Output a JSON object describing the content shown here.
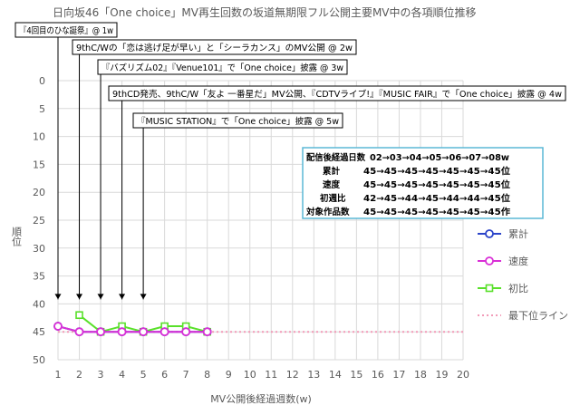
{
  "chart_data": {
    "type": "line",
    "title": "日向坂46「One choice」MV再生回数の坂道無期限フル公開主要MV中の各項順位推移",
    "xlabel": "MV公開後経過週数(w)",
    "ylabel": "順位",
    "x_ticks": [
      1,
      2,
      3,
      4,
      5,
      6,
      7,
      8,
      9,
      10,
      11,
      12,
      13,
      14,
      15,
      16,
      17,
      18,
      19,
      20
    ],
    "y_ticks": [
      0,
      5,
      10,
      15,
      20,
      25,
      30,
      35,
      40,
      45,
      50
    ],
    "xlim": [
      1,
      20
    ],
    "ylim": [
      0,
      50
    ],
    "y_inverted": true,
    "grid": true,
    "legend_position": "right",
    "series": [
      {
        "name": "累計",
        "color": "#2b44c9",
        "marker": "circle",
        "x": [
          1,
          2,
          3,
          4,
          5,
          6,
          7,
          8
        ],
        "values": [
          44,
          45,
          45,
          45,
          45,
          45,
          45,
          45
        ]
      },
      {
        "name": "速度",
        "color": "#d92fd6",
        "marker": "circle",
        "x": [
          1,
          2,
          3,
          4,
          5,
          6,
          7,
          8
        ],
        "values": [
          44,
          45,
          45,
          45,
          45,
          45,
          45,
          45
        ]
      },
      {
        "name": "初比",
        "color": "#59e02a",
        "marker": "square",
        "x": [
          2,
          3,
          4,
          5,
          6,
          7,
          8
        ],
        "values": [
          42,
          45,
          44,
          45,
          44,
          44,
          45
        ]
      },
      {
        "name": "最下位ライン",
        "color": "#f29bb8",
        "style": "dotted",
        "x": [
          1,
          20
        ],
        "values": [
          45,
          45
        ]
      }
    ],
    "annotations": [
      {
        "text": "『4回目のひな誕祭』@ 1w",
        "week": 1
      },
      {
        "text": "9thC/Wの「恋は逃げ足が早い」と「シーラカンス」のMV公開 @ 2w",
        "week": 2
      },
      {
        "text": "『バズリズム02』『Venue101』で「One choice」披露 @ 3w",
        "week": 3
      },
      {
        "text": "9thCD発売、9thC/W「友よ 一番星だ」MV公開、『CDTVライブ!』『MUSIC FAIR』で「One choice」披露 @ 4w",
        "week": 4
      },
      {
        "text": "『MUSIC STATION』で「One choice」披露 @ 5w",
        "week": 5
      }
    ],
    "info_box": {
      "header_label": "配信後経過日数",
      "header_value": "02→03→04→05→06→07→08w",
      "rows": [
        {
          "label": "累計",
          "value": "45→45→45→45→45→45→45位"
        },
        {
          "label": "速度",
          "value": "45→45→45→45→45→45→45位"
        },
        {
          "label": "初週比",
          "value": "42→45→44→45→44→44→45位"
        },
        {
          "label": "対象作品数",
          "value": "45→45→45→45→45→45→45作"
        }
      ]
    }
  }
}
